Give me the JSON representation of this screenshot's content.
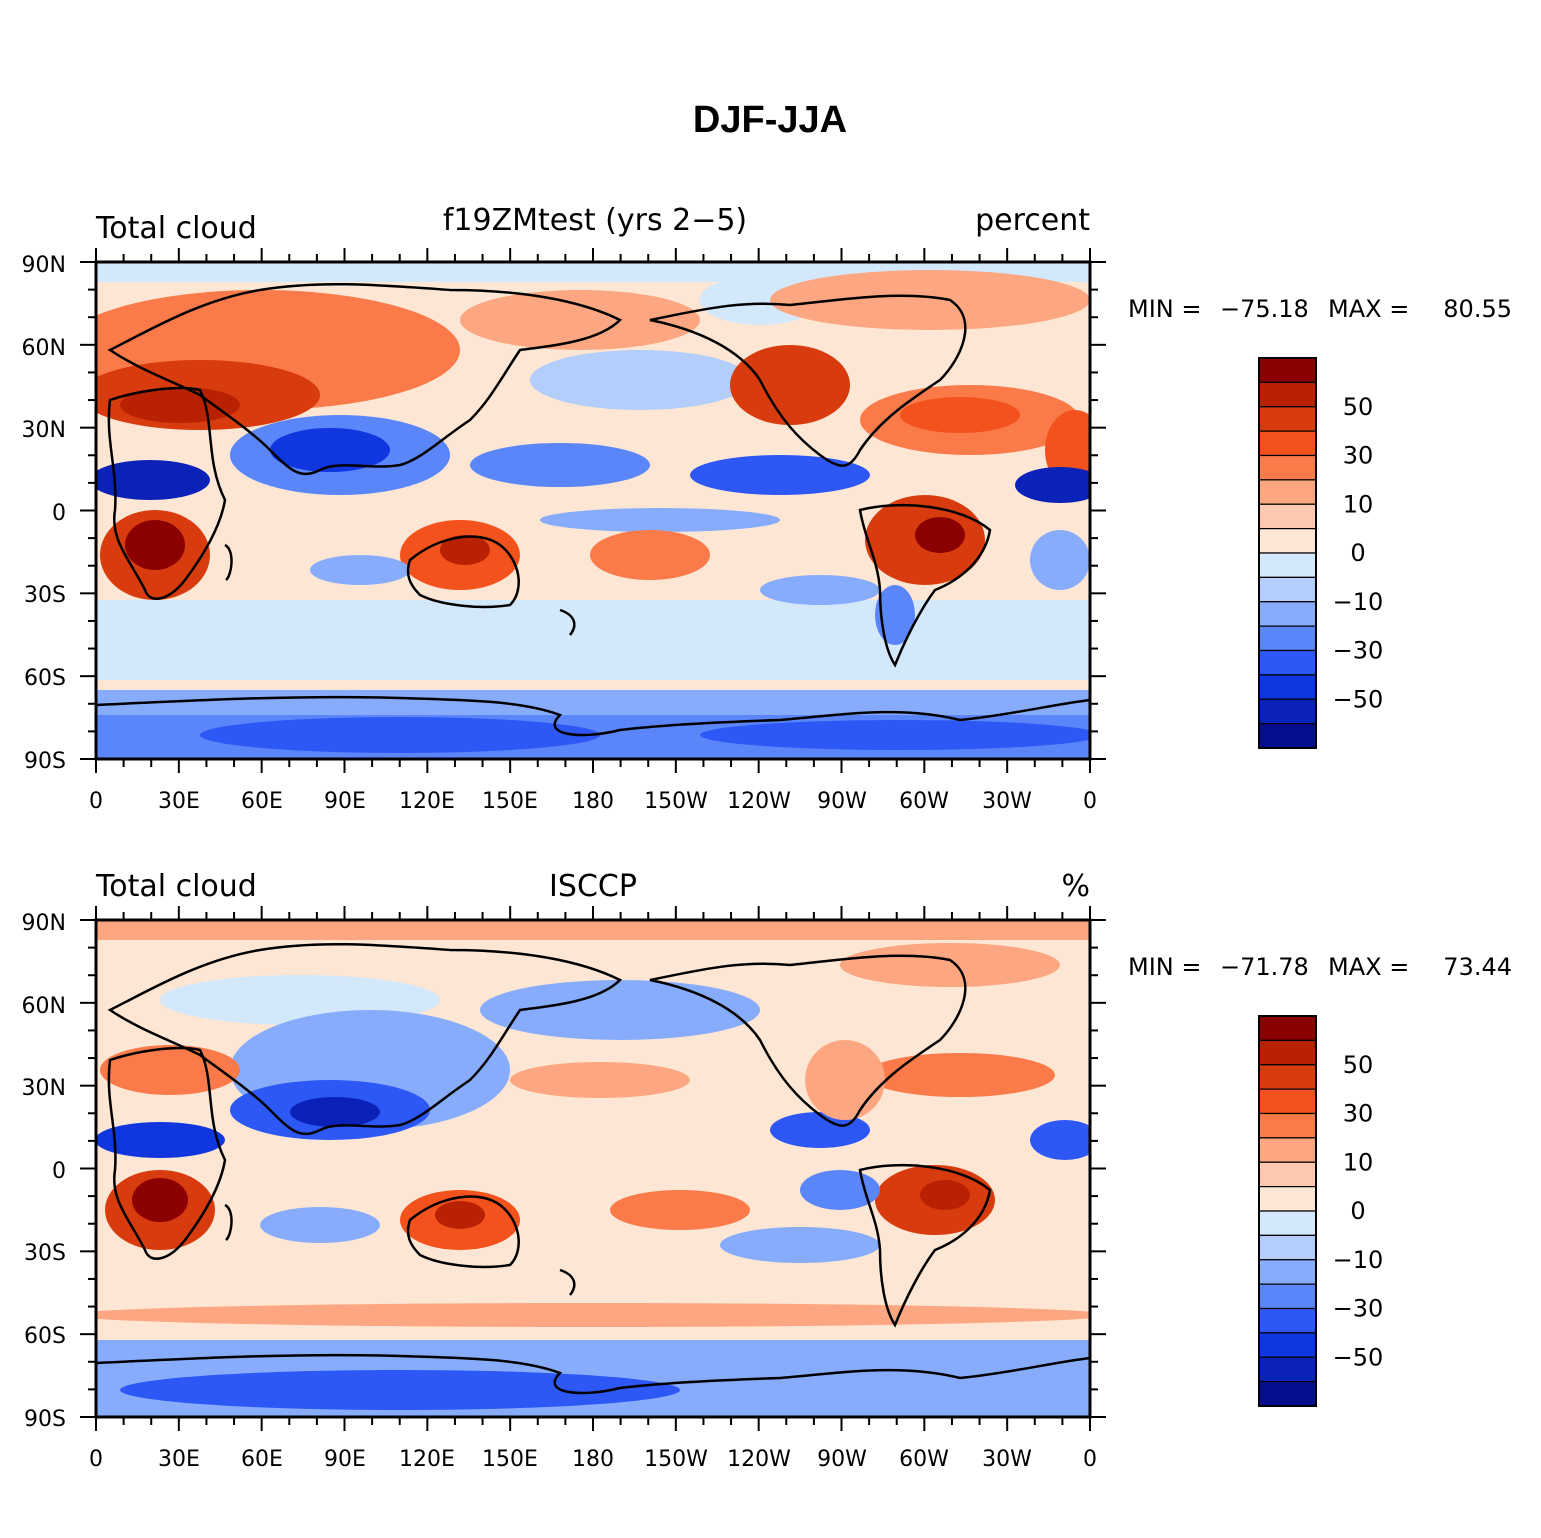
{
  "figure": {
    "title": "DJF-JJA"
  },
  "panels": [
    {
      "left_label": "Total cloud",
      "center_label": "f19ZMtest (yrs 2−5)",
      "right_label": "percent",
      "min_label": "MIN = ",
      "min_value": "−75.18",
      "max_label": "MAX = ",
      "max_value": "80.55"
    },
    {
      "left_label": "Total cloud",
      "center_label": "ISCCP",
      "right_label": "%",
      "min_label": "MIN = ",
      "min_value": "−71.78",
      "max_label": "MAX = ",
      "max_value": "73.44"
    }
  ],
  "axes": {
    "lon_ticks": [
      "0",
      "30E",
      "60E",
      "90E",
      "120E",
      "150E",
      "180",
      "150W",
      "120W",
      "90W",
      "60W",
      "30W",
      "0"
    ],
    "lat_ticks": [
      "90N",
      "60N",
      "30N",
      "0",
      "30S",
      "60S",
      "90S"
    ]
  },
  "colorbar": {
    "colors": [
      "#8b0000",
      "#b82203",
      "#d83b0e",
      "#f4521d",
      "#fb7a49",
      "#fca781",
      "#fdc9b0",
      "#fde6d4",
      "#d4e8fc",
      "#b3cdfc",
      "#87acfb",
      "#5a86fa",
      "#2e58f5",
      "#1036e0",
      "#0a22b8",
      "#050e8e"
    ],
    "labels": [
      "50",
      "30",
      "10",
      "0",
      "−10",
      "−30",
      "−50"
    ]
  },
  "colors": {
    "land_outline": "#000000",
    "frame": "#000000"
  }
}
